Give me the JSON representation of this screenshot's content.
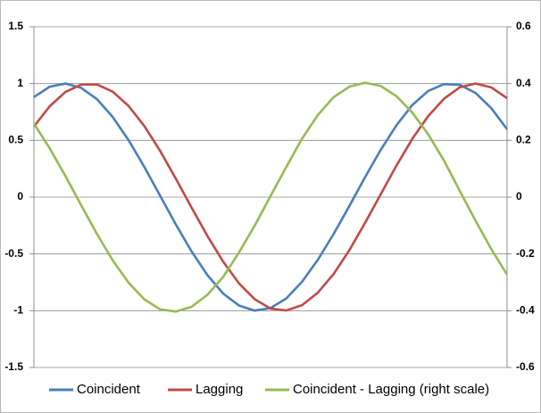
{
  "chart_data": {
    "type": "line",
    "series": [
      {
        "name": "Coincident",
        "color": "#4a7ebb",
        "values": [
          0.881,
          0.972,
          1.0,
          0.962,
          0.862,
          0.705,
          0.502,
          0.266,
          0.013,
          -0.241,
          -0.479,
          -0.686,
          -0.849,
          -0.954,
          -0.999,
          -0.977,
          -0.892,
          -0.745,
          -0.552,
          -0.325,
          -0.078,
          0.177,
          0.419,
          0.636,
          0.812,
          0.935,
          0.995,
          0.989,
          0.917,
          0.783,
          0.598
        ]
      },
      {
        "name": "Lagging",
        "color": "#be4b48",
        "values": [
          0.622,
          0.8,
          0.926,
          0.991,
          0.992,
          0.928,
          0.803,
          0.626,
          0.408,
          0.162,
          -0.093,
          -0.342,
          -0.568,
          -0.759,
          -0.899,
          -0.981,
          -0.998,
          -0.951,
          -0.841,
          -0.677,
          -0.467,
          -0.226,
          0.028,
          0.281,
          0.515,
          0.714,
          0.866,
          0.967,
          1.0,
          0.966,
          0.871
        ]
      },
      {
        "name": "Coincident - Lagging (right scale)",
        "color": "#98b954",
        "axis": "y2",
        "values": [
          0.259,
          0.172,
          0.074,
          -0.029,
          -0.13,
          -0.223,
          -0.301,
          -0.36,
          -0.395,
          -0.403,
          -0.386,
          -0.344,
          -0.281,
          -0.195,
          -0.1,
          0.004,
          0.106,
          0.206,
          0.289,
          0.352,
          0.389,
          0.403,
          0.391,
          0.355,
          0.297,
          0.221,
          0.129,
          0.022,
          -0.083,
          -0.183,
          -0.273
        ]
      }
    ],
    "ylim": [
      -1.5,
      1.5
    ],
    "yticks": [
      -1.5,
      -1,
      -0.5,
      0,
      0.5,
      1,
      1.5
    ],
    "y2lim": [
      -0.6,
      0.6
    ],
    "y2ticks": [
      -0.6,
      -0.4,
      -0.2,
      0,
      0.2,
      0.4,
      0.6
    ],
    "grid": true,
    "legend": "bottom"
  }
}
